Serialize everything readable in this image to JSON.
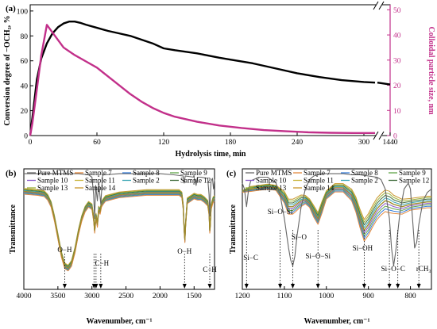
{
  "chart_data": [
    {
      "panel": "(a)",
      "type": "line",
      "xlabel": "Hydrolysis time, min",
      "ylabel_left": "Conversion degree of −OCH₃, %",
      "ylabel_right": "Colloidal particle size, nm",
      "x_ticks": [
        "0",
        "60",
        "120",
        "180",
        "240",
        "300",
        "1440"
      ],
      "y_left_ticks": [
        "0",
        "20",
        "40",
        "60",
        "80",
        "100"
      ],
      "y_right_ticks": [
        "0",
        "10",
        "20",
        "30",
        "40",
        "50"
      ],
      "xlim": [
        0,
        1440
      ],
      "ylim_left": [
        0,
        105
      ],
      "ylim_right": [
        0,
        52
      ],
      "axis_break": "between 310 and 1440",
      "grid": false,
      "right_axis_color": "#c2308a",
      "series": [
        {
          "axis": "left",
          "color": "#000000",
          "x": [
            0,
            3,
            6,
            10,
            15,
            20,
            25,
            30,
            35,
            40,
            45,
            50,
            60,
            70,
            80,
            90,
            100,
            110,
            120,
            130,
            150,
            170,
            180,
            200,
            220,
            240,
            260,
            280,
            300,
            310,
            1440
          ],
          "y": [
            0,
            22,
            45,
            62,
            74,
            82,
            87,
            90,
            91.5,
            91.5,
            90.5,
            89,
            86.5,
            84,
            82,
            80,
            77,
            74,
            70,
            68.5,
            66,
            62.5,
            61,
            58,
            54,
            50,
            47,
            44.5,
            43,
            42.5,
            41
          ]
        },
        {
          "axis": "right",
          "color": "#c2308a",
          "x": [
            0,
            2,
            5,
            10,
            15,
            20,
            25,
            30,
            40,
            50,
            60,
            70,
            80,
            90,
            100,
            110,
            120,
            130,
            150,
            170,
            190,
            210,
            230,
            250,
            270,
            290,
            310
          ],
          "y": [
            0,
            5,
            15,
            32,
            44,
            41,
            38,
            35,
            32,
            29.5,
            27,
            23.5,
            20,
            16.5,
            13.5,
            11,
            9,
            7.5,
            5.5,
            4,
            3,
            2.2,
            1.7,
            1.3,
            1.1,
            1,
            1
          ]
        }
      ]
    },
    {
      "panel": "(b)",
      "type": "line",
      "xlabel": "Wavenumber, cm⁻¹",
      "ylabel": "Transmittance",
      "x_ticks": [
        "4000",
        "3500",
        "3000",
        "2500",
        "2000",
        "1500"
      ],
      "xlim": [
        4000,
        1200
      ],
      "legend": [
        "Pure MTMS",
        "Sample 7",
        "Sample 8",
        "Sample 9",
        "Sample 10",
        "Sample 11",
        "Sample 2",
        "Sample 12",
        "Sample 13",
        "Sample 14"
      ],
      "legend_colors": [
        "#666666",
        "#e3893c",
        "#3a7fd9",
        "#5fa548",
        "#8a58c9",
        "#c9b53a",
        "#3aa6b4",
        "#3f6b3a",
        "#9ab23b",
        "#c9962c"
      ],
      "annotations": [
        {
          "text": "O−H",
          "x": 3400
        },
        {
          "text": "C−H",
          "x": 2900
        },
        {
          "text": "O−H",
          "x": 1640
        },
        {
          "text": "C−H",
          "x": 1270
        }
      ],
      "marker_wavenumbers": [
        3400,
        2970,
        2940,
        2870,
        1640,
        1270
      ],
      "curves": {
        "samples_x": [
          4000,
          3800,
          3700,
          3650,
          3600,
          3550,
          3500,
          3450,
          3400,
          3350,
          3300,
          3250,
          3200,
          3150,
          3100,
          3050,
          3000,
          2975,
          2960,
          2940,
          2920,
          2900,
          2880,
          2860,
          2840,
          2800,
          2600,
          2400,
          2200,
          2000,
          1900,
          1800,
          1720,
          1680,
          1660,
          1645,
          1635,
          1625,
          1600,
          1500,
          1450,
          1400,
          1350,
          1300,
          1280,
          1270,
          1262,
          1250,
          1220,
          1200
        ],
        "samples_y": [
          0.83,
          0.82,
          0.81,
          0.78,
          0.72,
          0.6,
          0.45,
          0.3,
          0.2,
          0.18,
          0.22,
          0.33,
          0.48,
          0.6,
          0.68,
          0.72,
          0.7,
          0.6,
          0.5,
          0.62,
          0.55,
          0.68,
          0.66,
          0.72,
          0.74,
          0.77,
          0.8,
          0.81,
          0.82,
          0.82,
          0.82,
          0.82,
          0.82,
          0.8,
          0.7,
          0.5,
          0.42,
          0.55,
          0.75,
          0.79,
          0.78,
          0.78,
          0.76,
          0.73,
          0.65,
          0.5,
          0.55,
          0.7,
          0.76,
          0.77
        ],
        "pure_x": [
          4000,
          3600,
          3200,
          3050,
          3000,
          2975,
          2960,
          2945,
          2920,
          2900,
          2870,
          2845,
          2830,
          2800,
          2600,
          2200,
          2000,
          1800,
          1660,
          1645,
          1630,
          1500,
          1470,
          1460,
          1450,
          1420,
          1400,
          1300,
          1280,
          1270,
          1262,
          1250,
          1230,
          1215,
          1200
        ],
        "pure_y": [
          0.98,
          0.98,
          0.98,
          0.97,
          0.95,
          0.8,
          0.6,
          0.88,
          0.75,
          0.9,
          0.72,
          0.96,
          0.97,
          0.97,
          0.98,
          0.98,
          0.98,
          0.97,
          0.96,
          0.9,
          0.96,
          0.95,
          0.88,
          0.92,
          0.95,
          0.95,
          0.95,
          0.94,
          0.8,
          0.62,
          0.78,
          0.92,
          0.94,
          0.85,
          0.93
        ]
      }
    },
    {
      "panel": "(c)",
      "type": "line",
      "xlabel": "Wavenumber, cm⁻¹",
      "ylabel": "Transmittance",
      "x_ticks": [
        "1200",
        "1100",
        "1000",
        "900",
        "800"
      ],
      "xlim": [
        1200,
        750
      ],
      "legend": [
        "Pure MTMS",
        "Sample 7",
        "Sample 8",
        "Sample 9",
        "Sample 10",
        "Sample 11",
        "Sample 2",
        "Sample 12",
        "Sample 13",
        "Sample 14"
      ],
      "legend_colors": [
        "#666666",
        "#e3893c",
        "#3a7fd9",
        "#5fa548",
        "#8a58c9",
        "#c9b53a",
        "#3aa6b4",
        "#3f6b3a",
        "#9ab23b",
        "#c9962c"
      ],
      "annotations": [
        {
          "text": "Si−C",
          "x": 1190
        },
        {
          "text": "Si−O−Si",
          "x": 1110
        },
        {
          "text": "Si−O",
          "x": 1080
        },
        {
          "text": "Si−O−Si",
          "x": 1020
        },
        {
          "text": "Si−OH",
          "x": 910
        },
        {
          "text": "Si−O−C",
          "x": 845
        },
        {
          "text": "rCH₃",
          "x": 780
        }
      ],
      "marker_wavenumbers": [
        1190,
        1110,
        1080,
        1020,
        910,
        850,
        830,
        780
      ],
      "curves": {
        "pure_x": [
          1200,
          1195,
          1190,
          1185,
          1180,
          1160,
          1140,
          1120,
          1110,
          1100,
          1090,
          1085,
          1080,
          1075,
          1070,
          1060,
          1050,
          1040,
          1030,
          1020,
          1010,
          1000,
          980,
          960,
          940,
          920,
          900,
          880,
          870,
          860,
          850,
          845,
          840,
          835,
          825,
          815,
          805,
          800,
          795,
          790,
          785,
          780,
          770,
          760,
          750
        ],
        "pure_y": [
          0.9,
          0.85,
          0.7,
          0.85,
          0.92,
          0.95,
          0.95,
          0.9,
          0.8,
          0.6,
          0.35,
          0.25,
          0.2,
          0.28,
          0.45,
          0.7,
          0.85,
          0.93,
          0.96,
          0.97,
          0.98,
          0.98,
          0.98,
          0.98,
          0.97,
          0.97,
          0.96,
          0.95,
          0.93,
          0.85,
          0.6,
          0.35,
          0.2,
          0.32,
          0.65,
          0.85,
          0.9,
          0.85,
          0.6,
          0.35,
          0.4,
          0.55,
          0.75,
          0.82,
          0.85
        ],
        "samples_x": [
          1200,
          1180,
          1160,
          1140,
          1120,
          1100,
          1090,
          1080,
          1060,
          1050,
          1040,
          1030,
          1020,
          1010,
          1000,
          980,
          960,
          940,
          930,
          920,
          910,
          900,
          890,
          880,
          870,
          860,
          850,
          840,
          820,
          800,
          780,
          760,
          750
        ],
        "samples_y": [
          0.83,
          0.85,
          0.86,
          0.87,
          0.86,
          0.78,
          0.7,
          0.7,
          0.75,
          0.76,
          0.73,
          0.66,
          0.6,
          0.7,
          0.8,
          0.86,
          0.86,
          0.8,
          0.72,
          0.6,
          0.5,
          0.55,
          0.62,
          0.68,
          0.72,
          0.75,
          0.74,
          0.72,
          0.7,
          0.72,
          0.73,
          0.74,
          0.74
        ],
        "samples_spread": [
          0.0,
          0.01,
          0.01,
          0.01,
          0.01,
          0.03,
          0.04,
          0.04,
          0.03,
          0.02,
          0.02,
          0.03,
          0.03,
          0.03,
          0.02,
          0.02,
          0.02,
          0.03,
          0.04,
          0.05,
          0.06,
          0.06,
          0.06,
          0.06,
          0.06,
          0.06,
          0.06,
          0.05,
          0.04,
          0.03,
          0.03,
          0.03,
          0.03
        ]
      }
    }
  ]
}
